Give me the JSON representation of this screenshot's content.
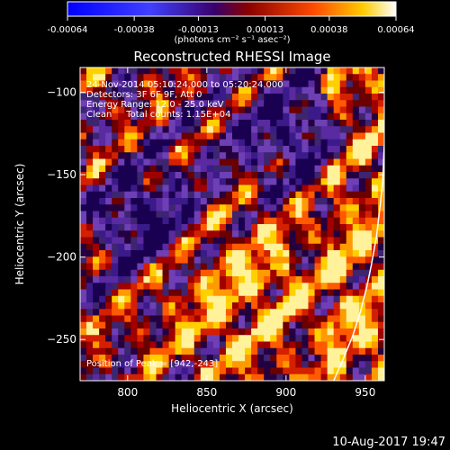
{
  "chart_data": {
    "type": "heatmap",
    "title": "Reconstructed RHESSI Image",
    "xlabel": "Heliocentric X (arcsec)",
    "ylabel": "Heliocentric Y (arcsec)",
    "xlim": [
      770,
      962
    ],
    "ylim": [
      -275,
      -85
    ],
    "xticks": [
      800,
      850,
      900,
      950
    ],
    "yticks": [
      -100,
      -150,
      -200,
      -250
    ],
    "colorbar": {
      "unit_label": "(photons cm⁻² s⁻¹ asec⁻²)",
      "ticks": [
        "-0.00064",
        "-0.00038",
        "-0.00013",
        "0.00013",
        "0.00038",
        "0.00064"
      ],
      "range": [
        -0.00064,
        0.00064
      ]
    },
    "annotations": [
      "24-Nov-2014 05:10:24.000 to 05:20:24.000",
      "Detectors: 3F 6F 9F, Att 0",
      "Energy Range: 12.0 - 25.0 keV",
      "Clean     Total counts: 1.15E+04"
    ],
    "peak_label": "Position of Peak = [942,-243]",
    "limb_points": [
      [
        930,
        -275
      ],
      [
        936,
        -262
      ],
      [
        942,
        -248
      ],
      [
        947,
        -233
      ],
      [
        951,
        -218
      ],
      [
        954,
        -204
      ],
      [
        957,
        -188
      ],
      [
        959,
        -172
      ],
      [
        961,
        -155
      ],
      [
        962,
        -132
      ]
    ]
  },
  "footer": {
    "timestamp": "10-Aug-2017 19:47"
  }
}
